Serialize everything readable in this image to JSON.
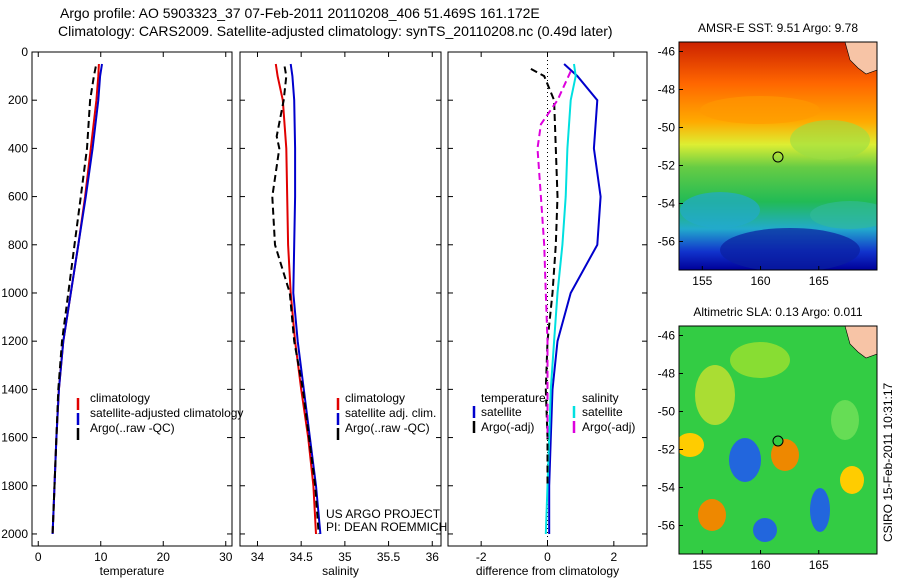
{
  "title_line1": "Argo profile: AO 5903323_37 07-Feb-2011 20110208_406 51.469S 161.172E",
  "title_line2": "Climatology: CARS2009. Satellite-adjusted climatology: synTS_20110208.nc (0.49d later)",
  "credit_line1": "US ARGO PROJECT",
  "credit_line2": "PI: DEAN ROEMMICH",
  "timestamp": "CSIRO 15-Feb-2011 10:31:17",
  "colors": {
    "red": "#e00000",
    "blue": "#0000cc",
    "black": "#000000",
    "cyan": "#00e0e0",
    "magenta": "#dd00dd"
  },
  "chart_data": [
    {
      "type": "line",
      "xlabel": "temperature",
      "xlim": [
        -1,
        31
      ],
      "xticks": [
        0,
        10,
        20,
        30
      ],
      "ylim": [
        0,
        2050
      ],
      "yticks": [
        0,
        200,
        400,
        600,
        800,
        1000,
        1200,
        1400,
        1600,
        1800,
        2000
      ],
      "y_reversed": true,
      "legend": [
        "climatology",
        "satellite-adjusted climatology",
        "Argo(..raw -QC)"
      ],
      "series": [
        {
          "name": "climatology",
          "color": "red",
          "x": [
            9.7,
            9.6,
            9.3,
            8.4,
            7.5,
            6.4,
            5.2,
            4.0,
            3.3,
            2.9,
            2.6,
            2.3
          ],
          "y": [
            50,
            100,
            200,
            400,
            600,
            800,
            1000,
            1200,
            1400,
            1600,
            1800,
            2000
          ]
        },
        {
          "name": "satellite-adjusted climatology",
          "color": "blue",
          "x": [
            10.2,
            9.9,
            9.6,
            8.7,
            7.6,
            6.4,
            5.2,
            4.0,
            3.3,
            2.9,
            2.6,
            2.3
          ],
          "y": [
            50,
            100,
            200,
            400,
            600,
            800,
            1000,
            1200,
            1400,
            1600,
            1800,
            2000
          ]
        },
        {
          "name": "Argo(..raw -QC)",
          "color": "black",
          "dashed": true,
          "x": [
            9.2,
            8.9,
            8.3,
            7.8,
            6.8,
            5.8,
            4.8,
            3.8,
            3.2,
            2.9,
            2.6,
            2.3
          ],
          "y": [
            60,
            100,
            200,
            400,
            600,
            800,
            1000,
            1200,
            1400,
            1600,
            1800,
            2000
          ]
        }
      ]
    },
    {
      "type": "line",
      "xlabel": "salinity",
      "xlim": [
        33.8,
        36.1
      ],
      "xticks": [
        34,
        34.5,
        35,
        35.5,
        36
      ],
      "xticklabels": [
        "34",
        "34.5",
        "35",
        "35.5",
        "36"
      ],
      "ylim": [
        0,
        2050
      ],
      "yticks": [
        0,
        200,
        400,
        600,
        800,
        1000,
        1200,
        1400,
        1600,
        1800,
        2000
      ],
      "y_reversed": true,
      "legend": [
        "climatology",
        "satellite adj. clim.",
        "Argo(..raw -QC)"
      ],
      "series": [
        {
          "name": "climatology",
          "color": "red",
          "x": [
            34.21,
            34.23,
            34.29,
            34.33,
            34.34,
            34.35,
            34.38,
            34.43,
            34.5,
            34.58,
            34.64,
            34.67
          ],
          "y": [
            50,
            100,
            200,
            400,
            600,
            800,
            1000,
            1200,
            1400,
            1600,
            1800,
            2000
          ]
        },
        {
          "name": "satellite adj. clim.",
          "color": "blue",
          "x": [
            34.38,
            34.4,
            34.42,
            34.43,
            34.43,
            34.42,
            34.41,
            34.46,
            34.53,
            34.6,
            34.67,
            34.72
          ],
          "y": [
            50,
            100,
            200,
            400,
            600,
            800,
            1000,
            1200,
            1400,
            1600,
            1800,
            2000
          ]
        },
        {
          "name": "Argo(..raw -QC)",
          "color": "black",
          "dashed": true,
          "x": [
            34.31,
            34.33,
            34.3,
            34.22,
            34.25,
            34.17,
            34.2,
            34.37,
            34.42,
            34.52,
            34.59,
            34.66,
            34.7
          ],
          "y": [
            60,
            100,
            200,
            350,
            400,
            600,
            800,
            1000,
            1200,
            1400,
            1600,
            1800,
            2000
          ]
        }
      ]
    },
    {
      "type": "line",
      "xlabel": "difference from climatology",
      "xlim": [
        -3,
        3
      ],
      "xticks": [
        -2,
        0,
        2
      ],
      "ylim": [
        0,
        2050
      ],
      "yticks": [
        0,
        200,
        400,
        600,
        800,
        1000,
        1200,
        1400,
        1600,
        1800,
        2000
      ],
      "y_reversed": true,
      "legend_headers": [
        "temperature",
        "salinity"
      ],
      "legend": [
        "satellite",
        "Argo(-adj)",
        "satellite",
        "Argo(-adj)"
      ],
      "series": [
        {
          "name": "temperature satellite",
          "color": "blue",
          "x": [
            0.5,
            0.9,
            1.5,
            1.4,
            1.6,
            1.5,
            0.7,
            0.3,
            0.15,
            0.1,
            0.05,
            0.05
          ],
          "y": [
            50,
            100,
            200,
            400,
            600,
            800,
            1000,
            1200,
            1400,
            1600,
            1800,
            2000
          ]
        },
        {
          "name": "salinity satellite",
          "color": "cyan",
          "x": [
            0.8,
            0.85,
            0.7,
            0.6,
            0.55,
            0.45,
            0.3,
            0.2,
            0.1,
            0.05,
            0.0,
            -0.05
          ],
          "y": [
            50,
            100,
            200,
            400,
            600,
            800,
            1000,
            1200,
            1400,
            1600,
            1800,
            2000
          ]
        },
        {
          "name": "temperature Argo(-adj)",
          "color": "black",
          "dashed": true,
          "x": [
            -0.5,
            -0.1,
            0.2,
            0.25,
            0.3,
            0.25,
            0.15,
            0.0,
            -0.05,
            0.0,
            0.0
          ],
          "y": [
            70,
            100,
            200,
            400,
            600,
            800,
            1000,
            1200,
            1400,
            1600,
            1800
          ]
        },
        {
          "name": "salinity Argo(-adj)",
          "color": "magenta",
          "dashed": true,
          "x": [
            0.7,
            0.3,
            -0.2,
            -0.3,
            -0.2,
            -0.1,
            -0.05,
            0.0,
            0.0,
            0.0
          ],
          "y": [
            80,
            200,
            300,
            400,
            600,
            800,
            1000,
            1200,
            1400,
            1600
          ]
        }
      ]
    }
  ],
  "map_top": {
    "title": "AMSR-E SST: 9.51  Argo: 9.78",
    "xticks": [
      "155",
      "160",
      "165"
    ],
    "yticks": [
      "-46",
      "-48",
      "-50",
      "-52",
      "-54",
      "-56"
    ],
    "xlim": [
      153,
      170
    ],
    "ylim": [
      -57.5,
      -45.5
    ],
    "float_position": [
      161.17,
      -51.47
    ]
  },
  "map_bottom": {
    "title": "Altimetric SLA: 0.13  Argo: 0.011",
    "xticks": [
      "155",
      "160",
      "165"
    ],
    "yticks": [
      "-46",
      "-48",
      "-50",
      "-52",
      "-54",
      "-56"
    ],
    "xlim": [
      153,
      170
    ],
    "ylim": [
      -57.5,
      -45.5
    ],
    "float_position": [
      161.17,
      -51.47
    ]
  }
}
